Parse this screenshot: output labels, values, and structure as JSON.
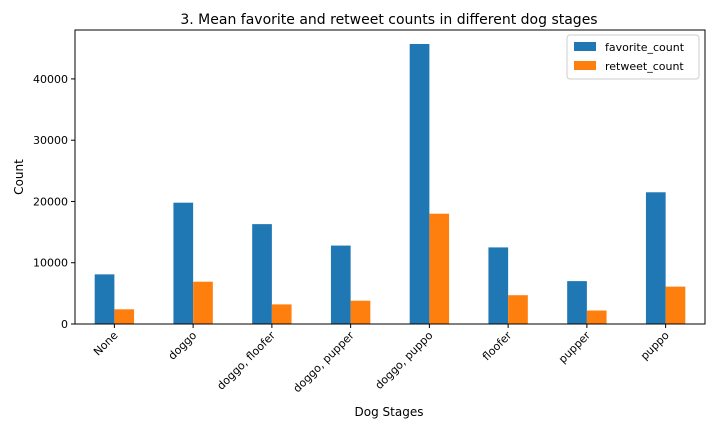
{
  "chart_data": {
    "type": "bar",
    "title": "3. Mean favorite and retweet counts in different dog stages",
    "xlabel": "Dog Stages",
    "ylabel": "Count",
    "categories": [
      "None",
      "doggo",
      "doggo, floofer",
      "doggo, pupper",
      "doggo, puppo",
      "floofer",
      "pupper",
      "puppo"
    ],
    "series": [
      {
        "name": "favorite_count",
        "color": "#1f77b4",
        "values": [
          8100,
          19800,
          16300,
          12800,
          45700,
          12500,
          7000,
          21500
        ]
      },
      {
        "name": "retweet_count",
        "color": "#ff7f0e",
        "values": [
          2400,
          6900,
          3200,
          3800,
          18000,
          4700,
          2200,
          6100
        ]
      }
    ],
    "ylim": [
      0,
      47985
    ],
    "yticks": [
      0,
      10000,
      20000,
      30000,
      40000
    ],
    "yticks_labels": [
      "0",
      "10000",
      "20000",
      "30000",
      "40000"
    ],
    "legend_position": "top-right",
    "grid": false
  }
}
